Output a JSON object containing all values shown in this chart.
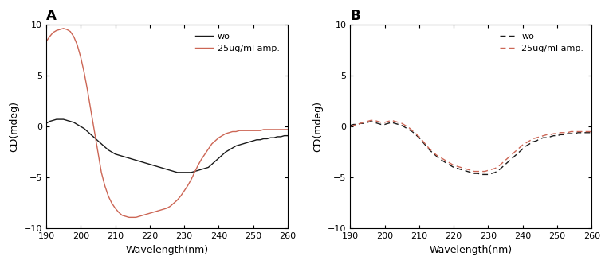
{
  "title_A": "A",
  "title_B": "B",
  "xlabel": "Wavelength(nm)",
  "ylabel": "CD(mdeg)",
  "xlim": [
    190,
    260
  ],
  "ylim": [
    -10,
    10
  ],
  "xticks": [
    190,
    200,
    210,
    220,
    230,
    240,
    250,
    260
  ],
  "yticks": [
    -10,
    -5,
    0,
    5,
    10
  ],
  "legend_wo": "wo",
  "legend_amp": "25ug/ml amp.",
  "color_black": "#1a1a1a",
  "color_red": "#cc6655",
  "bg_color": "#ffffff",
  "A_wo_x": [
    190,
    191,
    192,
    193,
    194,
    195,
    196,
    197,
    198,
    199,
    200,
    201,
    202,
    203,
    204,
    205,
    206,
    207,
    208,
    209,
    210,
    211,
    212,
    213,
    214,
    215,
    216,
    217,
    218,
    219,
    220,
    221,
    222,
    223,
    224,
    225,
    226,
    227,
    228,
    229,
    230,
    231,
    232,
    233,
    234,
    235,
    236,
    237,
    238,
    239,
    240,
    241,
    242,
    243,
    244,
    245,
    246,
    247,
    248,
    249,
    250,
    251,
    252,
    253,
    254,
    255,
    256,
    257,
    258,
    259,
    260
  ],
  "A_wo_y": [
    0.3,
    0.5,
    0.6,
    0.7,
    0.7,
    0.7,
    0.6,
    0.5,
    0.4,
    0.2,
    0.0,
    -0.2,
    -0.5,
    -0.8,
    -1.1,
    -1.4,
    -1.7,
    -2.0,
    -2.3,
    -2.5,
    -2.7,
    -2.8,
    -2.9,
    -3.0,
    -3.1,
    -3.2,
    -3.3,
    -3.4,
    -3.5,
    -3.6,
    -3.7,
    -3.8,
    -3.9,
    -4.0,
    -4.1,
    -4.2,
    -4.3,
    -4.4,
    -4.5,
    -4.5,
    -4.5,
    -4.5,
    -4.5,
    -4.4,
    -4.3,
    -4.2,
    -4.1,
    -4.0,
    -3.7,
    -3.4,
    -3.1,
    -2.8,
    -2.5,
    -2.3,
    -2.1,
    -1.9,
    -1.8,
    -1.7,
    -1.6,
    -1.5,
    -1.4,
    -1.3,
    -1.3,
    -1.2,
    -1.2,
    -1.1,
    -1.1,
    -1.0,
    -1.0,
    -0.9,
    -0.9
  ],
  "A_amp_x": [
    190,
    191,
    192,
    193,
    194,
    195,
    196,
    197,
    198,
    199,
    200,
    201,
    202,
    203,
    204,
    205,
    206,
    207,
    208,
    209,
    210,
    211,
    212,
    213,
    214,
    215,
    216,
    217,
    218,
    219,
    220,
    221,
    222,
    223,
    224,
    225,
    226,
    227,
    228,
    229,
    230,
    231,
    232,
    233,
    234,
    235,
    236,
    237,
    238,
    239,
    240,
    241,
    242,
    243,
    244,
    245,
    246,
    247,
    248,
    249,
    250,
    251,
    252,
    253,
    254,
    255,
    256,
    257,
    258,
    259,
    260
  ],
  "A_amp_y": [
    8.3,
    8.8,
    9.2,
    9.4,
    9.5,
    9.6,
    9.5,
    9.3,
    8.8,
    8.0,
    6.8,
    5.3,
    3.5,
    1.5,
    -0.5,
    -2.5,
    -4.5,
    -5.8,
    -6.8,
    -7.5,
    -8.0,
    -8.4,
    -8.7,
    -8.8,
    -8.9,
    -8.9,
    -8.9,
    -8.8,
    -8.7,
    -8.6,
    -8.5,
    -8.4,
    -8.3,
    -8.2,
    -8.1,
    -8.0,
    -7.8,
    -7.5,
    -7.2,
    -6.8,
    -6.3,
    -5.8,
    -5.2,
    -4.5,
    -3.8,
    -3.2,
    -2.7,
    -2.2,
    -1.7,
    -1.4,
    -1.1,
    -0.9,
    -0.7,
    -0.6,
    -0.5,
    -0.5,
    -0.4,
    -0.4,
    -0.4,
    -0.4,
    -0.4,
    -0.4,
    -0.4,
    -0.3,
    -0.3,
    -0.3,
    -0.3,
    -0.3,
    -0.3,
    -0.3,
    -0.3
  ],
  "B_wo_x": [
    190,
    191,
    192,
    193,
    194,
    195,
    196,
    197,
    198,
    199,
    200,
    201,
    202,
    203,
    204,
    205,
    206,
    207,
    208,
    209,
    210,
    211,
    212,
    213,
    214,
    215,
    216,
    217,
    218,
    219,
    220,
    221,
    222,
    223,
    224,
    225,
    226,
    227,
    228,
    229,
    230,
    231,
    232,
    233,
    234,
    235,
    236,
    237,
    238,
    239,
    240,
    241,
    242,
    243,
    244,
    245,
    246,
    247,
    248,
    249,
    250,
    251,
    252,
    253,
    254,
    255,
    256,
    257,
    258,
    259,
    260
  ],
  "B_wo_y": [
    0.1,
    0.2,
    0.2,
    0.3,
    0.3,
    0.4,
    0.5,
    0.4,
    0.3,
    0.2,
    0.2,
    0.3,
    0.4,
    0.3,
    0.2,
    0.1,
    -0.1,
    -0.3,
    -0.5,
    -0.8,
    -1.1,
    -1.5,
    -1.9,
    -2.3,
    -2.6,
    -2.9,
    -3.2,
    -3.4,
    -3.6,
    -3.8,
    -4.0,
    -4.1,
    -4.2,
    -4.3,
    -4.4,
    -4.5,
    -4.6,
    -4.6,
    -4.7,
    -4.7,
    -4.7,
    -4.6,
    -4.5,
    -4.3,
    -4.0,
    -3.7,
    -3.4,
    -3.1,
    -2.8,
    -2.5,
    -2.2,
    -1.9,
    -1.7,
    -1.5,
    -1.4,
    -1.2,
    -1.1,
    -1.1,
    -1.0,
    -0.9,
    -0.9,
    -0.8,
    -0.8,
    -0.7,
    -0.7,
    -0.7,
    -0.6,
    -0.6,
    -0.6,
    -0.6,
    -0.6
  ],
  "B_amp_x": [
    190,
    191,
    192,
    193,
    194,
    195,
    196,
    197,
    198,
    199,
    200,
    201,
    202,
    203,
    204,
    205,
    206,
    207,
    208,
    209,
    210,
    211,
    212,
    213,
    214,
    215,
    216,
    217,
    218,
    219,
    220,
    221,
    222,
    223,
    224,
    225,
    226,
    227,
    228,
    229,
    230,
    231,
    232,
    233,
    234,
    235,
    236,
    237,
    238,
    239,
    240,
    241,
    242,
    243,
    244,
    245,
    246,
    247,
    248,
    249,
    250,
    251,
    252,
    253,
    254,
    255,
    256,
    257,
    258,
    259,
    260
  ],
  "B_amp_y": [
    0.0,
    0.1,
    0.2,
    0.3,
    0.4,
    0.5,
    0.6,
    0.6,
    0.5,
    0.4,
    0.4,
    0.5,
    0.6,
    0.5,
    0.4,
    0.3,
    0.1,
    -0.1,
    -0.4,
    -0.7,
    -1.0,
    -1.4,
    -1.8,
    -2.2,
    -2.5,
    -2.8,
    -3.0,
    -3.2,
    -3.4,
    -3.6,
    -3.8,
    -3.9,
    -4.0,
    -4.1,
    -4.2,
    -4.3,
    -4.4,
    -4.4,
    -4.4,
    -4.4,
    -4.3,
    -4.2,
    -4.1,
    -3.9,
    -3.6,
    -3.3,
    -3.0,
    -2.7,
    -2.4,
    -2.1,
    -1.8,
    -1.6,
    -1.4,
    -1.2,
    -1.1,
    -1.0,
    -0.9,
    -0.8,
    -0.8,
    -0.7,
    -0.7,
    -0.6,
    -0.6,
    -0.6,
    -0.5,
    -0.5,
    -0.5,
    -0.5,
    -0.5,
    -0.5,
    -0.5
  ]
}
